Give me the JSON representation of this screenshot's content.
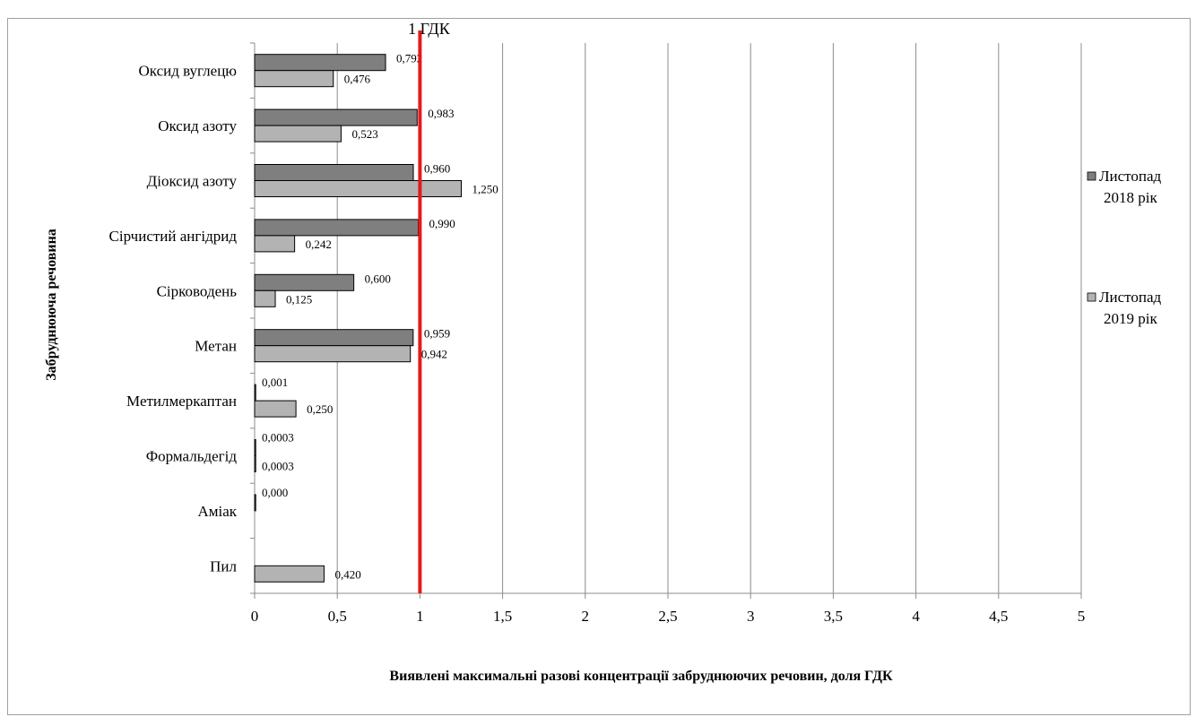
{
  "chart_data": {
    "type": "bar",
    "orientation": "horizontal",
    "categories": [
      "Оксид вуглецю",
      "Оксид азоту",
      "Діоксид азоту",
      "Сірчистий ангідрид",
      "Сірководень",
      "Метан",
      "Метилмеркаптан",
      "Формальдегід",
      "Аміак",
      "Пил"
    ],
    "series": [
      {
        "name": "Листопад 2018 рік",
        "color": "#7f7f7f",
        "values": [
          0.792,
          0.983,
          0.96,
          0.99,
          0.6,
          0.959,
          0.001,
          0.0003,
          0.0,
          null
        ],
        "labels": [
          "0,792",
          "0,983",
          "0,960",
          "0,990",
          "0,600",
          "0,959",
          "0,001",
          "0,0003",
          "0,000",
          ""
        ]
      },
      {
        "name": "Листопад 2019 рік",
        "color": "#b3b3b3",
        "values": [
          0.476,
          0.523,
          1.25,
          0.242,
          0.125,
          0.942,
          0.25,
          0.0003,
          null,
          0.42
        ],
        "labels": [
          "0,476",
          "0,523",
          "1,250",
          "0,242",
          "0,125",
          "0,942",
          "0,250",
          "0,0003",
          "",
          "0,420"
        ]
      }
    ],
    "xlim": [
      0,
      5
    ],
    "xticks": [
      0,
      0.5,
      1,
      1.5,
      2,
      2.5,
      3,
      3.5,
      4,
      4.5,
      5
    ],
    "xtick_labels": [
      "0",
      "0,5",
      "1",
      "1,5",
      "2",
      "2,5",
      "3",
      "3,5",
      "4",
      "4,5",
      "5"
    ],
    "xlabel": "Виявлені максимальні разові концентрації забруднюючих речовин, доля ГДК",
    "ylabel": "Забруднююча речовина",
    "grid": "vertical",
    "legend_position": "right",
    "legend_lines": [
      [
        "Листопад",
        "2018 рік"
      ],
      [
        "Листопад",
        "2019 рік"
      ]
    ],
    "reference_line": {
      "value": 1,
      "label": "1 ГДК",
      "color": "#e31a1c"
    }
  }
}
